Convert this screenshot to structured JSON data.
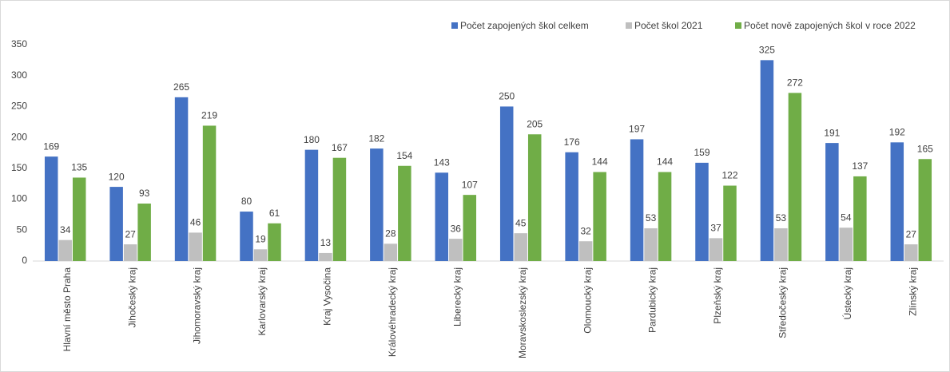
{
  "chart_data": {
    "type": "bar",
    "categories": [
      "Hlavní město Praha",
      "Jihočeský kraj",
      "Jihomoravský kraj",
      "Karlovarský kraj",
      "Kraj Vysočina",
      "Královéhradecký kraj",
      "Liberecký kraj",
      "Moravskoslezský kraj",
      "Olomoucký kraj",
      "Pardubický kraj",
      "Plzeňský kraj",
      "Středočeský kraj",
      "Ústecký kraj",
      "Zlínský kraj"
    ],
    "series": [
      {
        "name": "Počet zapojených škol celkem",
        "color": "#4472c4",
        "values": [
          169,
          120,
          265,
          80,
          180,
          182,
          143,
          250,
          176,
          197,
          159,
          325,
          191,
          192
        ]
      },
      {
        "name": "Počet škol 2021",
        "color": "#bfbfbf",
        "values": [
          34,
          27,
          46,
          19,
          13,
          28,
          36,
          45,
          32,
          53,
          37,
          53,
          54,
          27
        ]
      },
      {
        "name": "Počet nově zapojených škol v roce 2022",
        "color": "#70ad47",
        "values": [
          135,
          93,
          219,
          61,
          167,
          154,
          107,
          205,
          144,
          144,
          122,
          272,
          137,
          165
        ]
      }
    ],
    "ylim": [
      0,
      350
    ],
    "yticks": [
      0,
      50,
      100,
      150,
      200,
      250,
      300,
      350
    ],
    "grid": false,
    "legend": "top"
  }
}
